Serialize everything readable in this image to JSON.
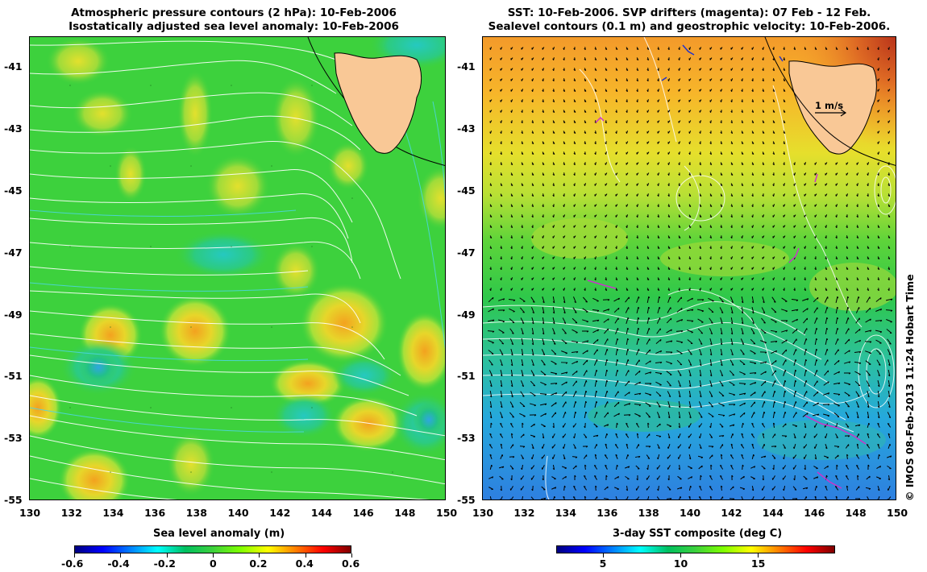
{
  "left_panel": {
    "title_line1": "Atmospheric pressure contours (2 hPa): 10-Feb-2006",
    "title_line2": "Isostatically adjusted sea level anomaly: 10-Feb-2006",
    "colorbar_label": "Sea level anomaly (m)",
    "colorbar_ticks": [
      "-0.6",
      "-0.4",
      "-0.2",
      "0",
      "0.2",
      "0.4",
      "0.6"
    ],
    "colorbar_range": [
      -0.6,
      0.6
    ],
    "background_color": "#3dd13d"
  },
  "right_panel": {
    "title_line1": "SST: 10-Feb-2006. SVP drifters (magenta): 07 Feb - 12 Feb.",
    "title_line2": "Sealevel contours (0.1 m) and geostrophic velocity: 10-Feb-2006.",
    "colorbar_label": "3-day SST composite (deg C)",
    "colorbar_ticks": [
      "5",
      "10",
      "15"
    ],
    "colorbar_range": [
      2,
      20
    ],
    "vector_scale_label": "1 m/s",
    "drifter_color": "#cc33cc"
  },
  "axes": {
    "x_ticks": [
      "130",
      "132",
      "134",
      "136",
      "138",
      "140",
      "142",
      "144",
      "146",
      "148",
      "150"
    ],
    "y_ticks": [
      "-41",
      "-43",
      "-45",
      "-47",
      "-49",
      "-51",
      "-53",
      "-55"
    ],
    "x_range": [
      130,
      150
    ],
    "y_range": [
      -55,
      -40
    ]
  },
  "land_color": "#f9c896",
  "credit": "© IMOS 08-Feb-2013 11:24 Hobart Time"
}
